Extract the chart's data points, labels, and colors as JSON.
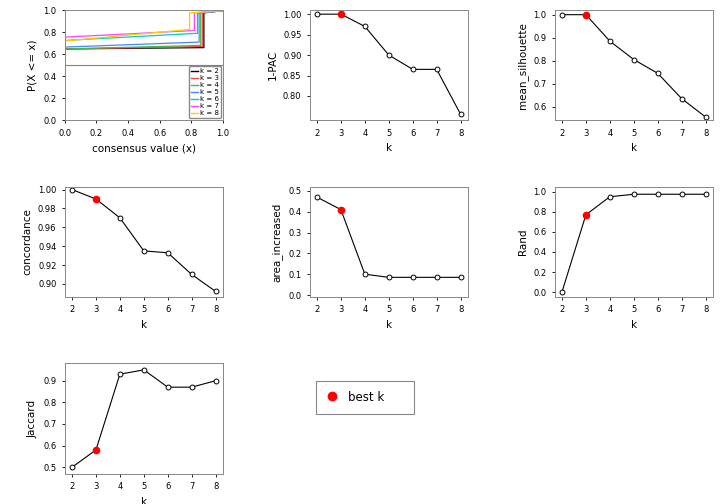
{
  "k_values": [
    2,
    3,
    4,
    5,
    6,
    7,
    8
  ],
  "one_pac": [
    1.0,
    1.0,
    0.97,
    0.9,
    0.865,
    0.865,
    0.755
  ],
  "mean_silhouette": [
    1.0,
    1.0,
    0.885,
    0.805,
    0.745,
    0.635,
    0.555
  ],
  "concordance": [
    1.0,
    0.99,
    0.97,
    0.935,
    0.933,
    0.91,
    0.892
  ],
  "area_increased": [
    0.47,
    0.41,
    0.1,
    0.085,
    0.085,
    0.085,
    0.085
  ],
  "rand": [
    0.0,
    0.77,
    0.95,
    0.975,
    0.975,
    0.975,
    0.975
  ],
  "jaccard": [
    0.5,
    0.58,
    0.93,
    0.95,
    0.87,
    0.87,
    0.9
  ],
  "best_k": 3,
  "ecdf_colors": [
    "#000000",
    "#FF4444",
    "#44BB44",
    "#4488FF",
    "#00CCCC",
    "#FF44FF",
    "#FFCC00"
  ],
  "ecdf_labels": [
    "k = 2",
    "k = 3",
    "k = 4",
    "k = 5",
    "k = 6",
    "k = 7",
    "k = 8"
  ]
}
